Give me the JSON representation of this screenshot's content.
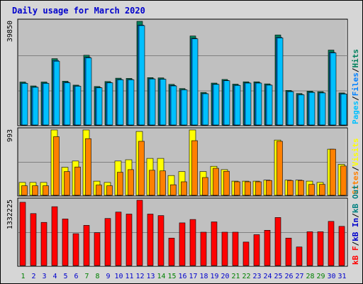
{
  "title": "Daily usage for March 2020",
  "colors": {
    "frame_bg": "#d6d6d6",
    "plot_bg": "#c0c0c0",
    "grid": "#808080",
    "title": "#0000cc",
    "hits": "#00805c",
    "files": "#0080ff",
    "pages": "#00c0ff",
    "visits": "#ffff00",
    "sites": "#ff8000",
    "kb_in": "#008040",
    "kb_out": "#00a0a0",
    "kb_f": "#ff0000",
    "day_weekday": "#0000cc",
    "day_weekend": "#008000"
  },
  "legend": {
    "hits_pages": [
      {
        "text": "Pages",
        "color": "#00c0ff"
      },
      {
        "text": "Files",
        "color": "#0080ff"
      },
      {
        "text": "Hits",
        "color": "#00805c"
      }
    ],
    "visits_sites": [
      {
        "text": "Sites",
        "color": "#ff8000"
      },
      {
        "text": "Visits",
        "color": "#ffff00"
      }
    ],
    "kbytes": [
      {
        "text": "kB F",
        "color": "#ff0000"
      },
      {
        "text": "kB In",
        "color": "#0000cc"
      },
      {
        "text": "kB Out",
        "color": "#008080"
      }
    ],
    "separator": "/"
  },
  "chart_data": [
    {
      "type": "bar",
      "panel": "hits_files_pages",
      "ymax_label": "39850",
      "ylim": [
        0,
        39850
      ],
      "categories": [
        "1",
        "2",
        "3",
        "4",
        "5",
        "6",
        "7",
        "8",
        "9",
        "10",
        "11",
        "12",
        "13",
        "14",
        "15",
        "16",
        "17",
        "18",
        "19",
        "20",
        "21",
        "22",
        "23",
        "24",
        "25",
        "26",
        "27",
        "28",
        "29",
        "30",
        "31"
      ],
      "series": [
        {
          "name": "Hits",
          "values": [
            16500,
            15000,
            16500,
            25500,
            16800,
            15300,
            26800,
            14800,
            16700,
            18000,
            17900,
            39850,
            18200,
            18100,
            15600,
            14000,
            34200,
            12500,
            16100,
            17500,
            15700,
            16600,
            16600,
            15800,
            34600,
            13300,
            12100,
            13000,
            12800,
            28800,
            12300
          ]
        },
        {
          "name": "Files",
          "values": [
            16100,
            14600,
            16100,
            24800,
            16400,
            15000,
            26000,
            14400,
            16300,
            17500,
            17500,
            38400,
            17800,
            17700,
            15200,
            13600,
            33300,
            12100,
            15700,
            17100,
            15300,
            16200,
            16200,
            15400,
            33700,
            12900,
            11700,
            12600,
            12400,
            27900,
            12000
          ]
        },
        {
          "name": "Pages",
          "values": [
            16000,
            14500,
            16000,
            24500,
            16200,
            14900,
            25800,
            14300,
            16200,
            17400,
            17400,
            38200,
            17700,
            17600,
            15000,
            13500,
            33100,
            12000,
            15600,
            17000,
            15200,
            16100,
            16100,
            15300,
            33500,
            12800,
            11600,
            12500,
            12300,
            27700,
            11900
          ]
        }
      ]
    },
    {
      "type": "bar",
      "panel": "visits_sites",
      "ymax_label": "993",
      "ylim": [
        0,
        993
      ],
      "categories": [
        "1",
        "2",
        "3",
        "4",
        "5",
        "6",
        "7",
        "8",
        "9",
        "10",
        "11",
        "12",
        "13",
        "14",
        "15",
        "16",
        "17",
        "18",
        "19",
        "20",
        "21",
        "22",
        "23",
        "24",
        "25",
        "26",
        "27",
        "28",
        "29",
        "30",
        "31"
      ],
      "series": [
        {
          "name": "Visits",
          "values": [
            195,
            195,
            195,
            993,
            425,
            520,
            993,
            215,
            195,
            520,
            540,
            970,
            560,
            560,
            300,
            360,
            993,
            360,
            440,
            390,
            215,
            215,
            215,
            230,
            840,
            230,
            230,
            215,
            195,
            700,
            470
          ]
        },
        {
          "name": "Sites",
          "values": [
            145,
            145,
            145,
            890,
            360,
            430,
            860,
            155,
            145,
            350,
            390,
            820,
            380,
            370,
            160,
            205,
            830,
            270,
            410,
            365,
            205,
            205,
            205,
            225,
            820,
            225,
            225,
            165,
            165,
            700,
            445
          ]
        }
      ]
    },
    {
      "type": "bar",
      "panel": "kbytes",
      "ymax_label": "1332225",
      "ylim": [
        0,
        1332225
      ],
      "categories": [
        "1",
        "2",
        "3",
        "4",
        "5",
        "6",
        "7",
        "8",
        "9",
        "10",
        "11",
        "12",
        "13",
        "14",
        "15",
        "16",
        "17",
        "18",
        "19",
        "20",
        "21",
        "22",
        "23",
        "24",
        "25",
        "26",
        "27",
        "28",
        "29",
        "30",
        "31"
      ],
      "series": [
        {
          "name": "kB F",
          "values": [
            1290000,
            1060000,
            880000,
            1200000,
            950000,
            650000,
            820000,
            670000,
            960000,
            1090000,
            1050000,
            1332225,
            1050000,
            1020000,
            560000,
            870000,
            940000,
            680000,
            890000,
            680000,
            680000,
            480000,
            630000,
            720000,
            980000,
            560000,
            380000,
            690000,
            690000,
            900000,
            800000
          ]
        }
      ]
    }
  ],
  "x_axis": {
    "labels": [
      "1",
      "2",
      "3",
      "4",
      "5",
      "6",
      "7",
      "8",
      "9",
      "10",
      "11",
      "12",
      "13",
      "14",
      "15",
      "16",
      "17",
      "18",
      "19",
      "20",
      "21",
      "22",
      "23",
      "24",
      "25",
      "26",
      "27",
      "28",
      "29",
      "30",
      "31"
    ],
    "weekend_days": [
      1,
      7,
      8,
      14,
      15,
      21,
      22,
      28,
      29
    ]
  }
}
